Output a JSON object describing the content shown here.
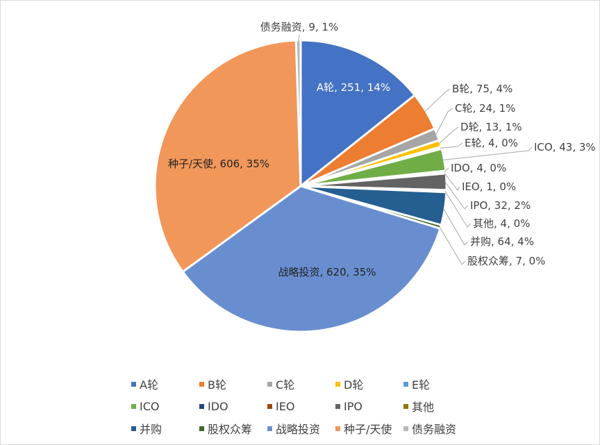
{
  "chart_data": {
    "type": "pie",
    "title": "",
    "slices": [
      {
        "name": "A轮",
        "value": 251,
        "percent": "14%",
        "label": "A轮, 251, 14%",
        "color": "#4472C4"
      },
      {
        "name": "B轮",
        "value": 75,
        "percent": "4%",
        "label": "B轮, 75, 4%",
        "color": "#ED7D31"
      },
      {
        "name": "C轮",
        "value": 24,
        "percent": "1%",
        "label": "C轮, 24, 1%",
        "color": "#A5A5A5"
      },
      {
        "name": "D轮",
        "value": 13,
        "percent": "1%",
        "label": "D轮, 13, 1%",
        "color": "#FFC000"
      },
      {
        "name": "E轮",
        "value": 4,
        "percent": "0%",
        "label": "E轮, 4, 0%",
        "color": "#5B9BD5"
      },
      {
        "name": "ICO",
        "value": 43,
        "percent": "3%",
        "label": "ICO, 43, 3%",
        "color": "#70AD47"
      },
      {
        "name": "IDO",
        "value": 4,
        "percent": "0%",
        "label": "IDO, 4, 0%",
        "color": "#264478"
      },
      {
        "name": "IEO",
        "value": 1,
        "percent": "0%",
        "label": "IEO, 1, 0%",
        "color": "#9E480E"
      },
      {
        "name": "IPO",
        "value": 32,
        "percent": "2%",
        "label": "IPO, 32, 2%",
        "color": "#636363"
      },
      {
        "name": "其他",
        "value": 4,
        "percent": "0%",
        "label": "其他, 4, 0%",
        "color": "#997300"
      },
      {
        "name": "并购",
        "value": 64,
        "percent": "4%",
        "label": "并购, 64, 4%",
        "color": "#255E91"
      },
      {
        "name": "股权众筹",
        "value": 7,
        "percent": "0%",
        "label": "股权众筹, 7, 0%",
        "color": "#43682B"
      },
      {
        "name": "战略投资",
        "value": 620,
        "percent": "35%",
        "label": "战略投资, 620, 35%",
        "color": "#698ED0"
      },
      {
        "name": "种子/天使",
        "value": 606,
        "percent": "35%",
        "label": "种子/天使, 606, 35%",
        "color": "#F1975A"
      },
      {
        "name": "债务融资",
        "value": 9,
        "percent": "1%",
        "label": "债务融资, 9, 1%",
        "color": "#B7B7B7"
      }
    ],
    "legend": {
      "position": "bottom",
      "rows": [
        [
          "A轮",
          "B轮",
          "C轮",
          "D轮",
          "E轮"
        ],
        [
          "ICO",
          "IDO",
          "IEO",
          "IPO",
          "其他"
        ],
        [
          "并购",
          "股权众筹",
          "战略投资",
          "种子/天使",
          "债务融资"
        ]
      ]
    }
  }
}
